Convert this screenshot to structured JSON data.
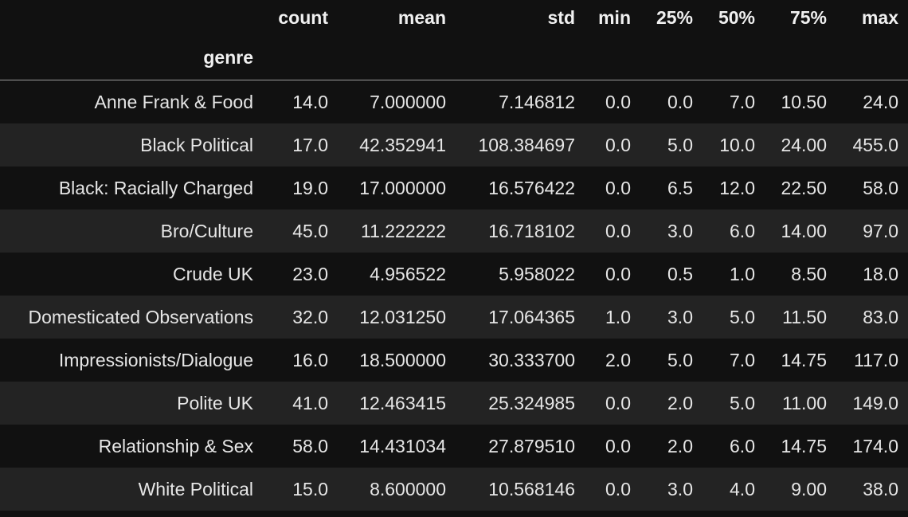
{
  "table": {
    "columns": [
      "count",
      "mean",
      "std",
      "min",
      "25%",
      "50%",
      "75%",
      "max"
    ],
    "index_name": "genre",
    "rows": [
      {
        "label": "Anne Frank & Food",
        "values": [
          "14.0",
          "7.000000",
          "7.146812",
          "0.0",
          "0.0",
          "7.0",
          "10.50",
          "24.0"
        ]
      },
      {
        "label": "Black Political",
        "values": [
          "17.0",
          "42.352941",
          "108.384697",
          "0.0",
          "5.0",
          "10.0",
          "24.00",
          "455.0"
        ]
      },
      {
        "label": "Black: Racially Charged",
        "values": [
          "19.0",
          "17.000000",
          "16.576422",
          "0.0",
          "6.5",
          "12.0",
          "22.50",
          "58.0"
        ]
      },
      {
        "label": "Bro/Culture",
        "values": [
          "45.0",
          "11.222222",
          "16.718102",
          "0.0",
          "3.0",
          "6.0",
          "14.00",
          "97.0"
        ]
      },
      {
        "label": "Crude UK",
        "values": [
          "23.0",
          "4.956522",
          "5.958022",
          "0.0",
          "0.5",
          "1.0",
          "8.50",
          "18.0"
        ]
      },
      {
        "label": "Domesticated Observations",
        "values": [
          "32.0",
          "12.031250",
          "17.064365",
          "1.0",
          "3.0",
          "5.0",
          "11.50",
          "83.0"
        ]
      },
      {
        "label": "Impressionists/Dialogue",
        "values": [
          "16.0",
          "18.500000",
          "30.333700",
          "2.0",
          "5.0",
          "7.0",
          "14.75",
          "117.0"
        ]
      },
      {
        "label": "Polite UK",
        "values": [
          "41.0",
          "12.463415",
          "25.324985",
          "0.0",
          "2.0",
          "5.0",
          "11.00",
          "149.0"
        ]
      },
      {
        "label": "Relationship & Sex",
        "values": [
          "58.0",
          "14.431034",
          "27.879510",
          "0.0",
          "2.0",
          "6.0",
          "14.75",
          "174.0"
        ]
      },
      {
        "label": "White Political",
        "values": [
          "15.0",
          "8.600000",
          "10.568146",
          "0.0",
          "3.0",
          "4.0",
          "9.00",
          "38.0"
        ]
      }
    ]
  },
  "colors": {
    "background": "#111111",
    "row_stripe": "#232323",
    "text": "#e6e6e6",
    "header_rule": "#9a9a9a"
  }
}
